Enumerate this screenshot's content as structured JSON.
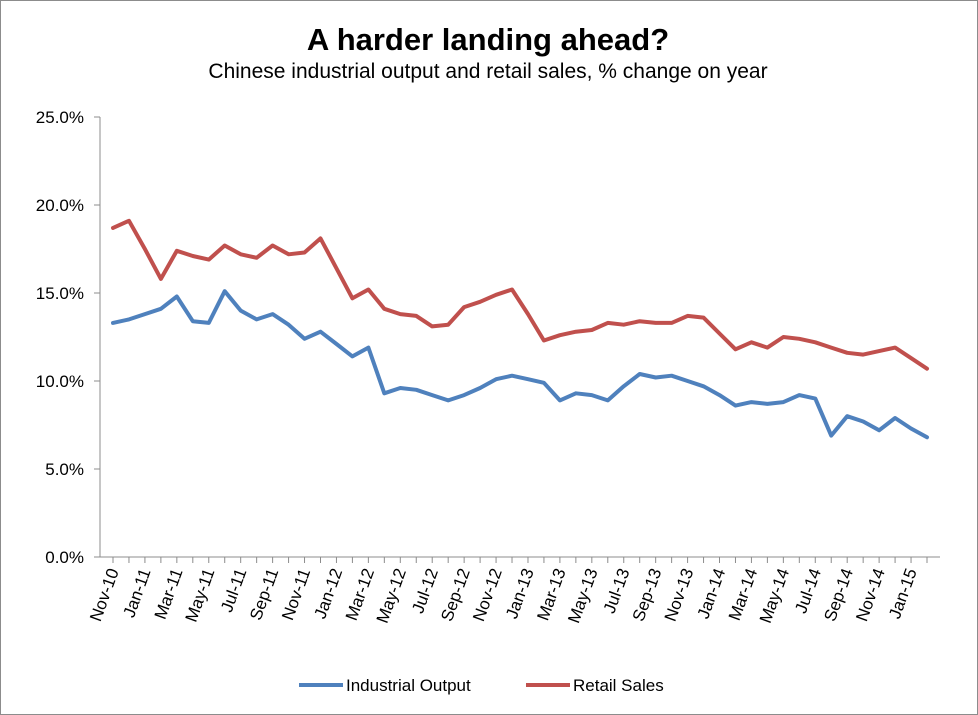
{
  "chart_data": {
    "type": "line",
    "title": "A harder landing ahead?",
    "subtitle": "Chinese industrial output and retail sales, % change on year",
    "xlabel": "",
    "ylabel": "",
    "ylim": [
      0,
      25
    ],
    "yticks": [
      "0.0%",
      "5.0%",
      "10.0%",
      "15.0%",
      "20.0%",
      "25.0%"
    ],
    "ytick_values": [
      0,
      5,
      10,
      15,
      20,
      25
    ],
    "x": [
      "Nov-10",
      "Dec-10",
      "Jan-11",
      "Feb-11",
      "Mar-11",
      "Apr-11",
      "May-11",
      "Jun-11",
      "Jul-11",
      "Aug-11",
      "Sep-11",
      "Oct-11",
      "Nov-11",
      "Dec-11",
      "Jan-12",
      "Feb-12",
      "Mar-12",
      "Apr-12",
      "May-12",
      "Jun-12",
      "Jul-12",
      "Aug-12",
      "Sep-12",
      "Oct-12",
      "Nov-12",
      "Dec-12",
      "Jan-13",
      "Feb-13",
      "Mar-13",
      "Apr-13",
      "May-13",
      "Jun-13",
      "Jul-13",
      "Aug-13",
      "Sep-13",
      "Oct-13",
      "Nov-13",
      "Dec-13",
      "Jan-14",
      "Feb-14",
      "Mar-14",
      "Apr-14",
      "May-14",
      "Jun-14",
      "Jul-14",
      "Aug-14",
      "Sep-14",
      "Oct-14",
      "Nov-14",
      "Dec-14",
      "Jan-15",
      "Feb-15"
    ],
    "xtick_labels": [
      "Nov-10",
      "Jan-11",
      "Mar-11",
      "May-11",
      "Jul-11",
      "Sep-11",
      "Nov-11",
      "Jan-12",
      "Mar-12",
      "May-12",
      "Jul-12",
      "Sep-12",
      "Nov-12",
      "Jan-13",
      "Mar-13",
      "May-13",
      "Jul-13",
      "Sep-13",
      "Nov-13",
      "Jan-14",
      "Mar-14",
      "May-14",
      "Jul-14",
      "Sep-14",
      "Nov-14",
      "Jan-15"
    ],
    "grid": false,
    "legend_position": "bottom",
    "series": [
      {
        "name": "Industrial Output",
        "color": "#4f81bd",
        "values": [
          13.3,
          13.5,
          13.8,
          14.1,
          14.8,
          13.4,
          13.3,
          15.1,
          14.0,
          13.5,
          13.8,
          13.2,
          12.4,
          12.8,
          12.1,
          11.4,
          11.9,
          9.3,
          9.6,
          9.5,
          9.2,
          8.9,
          9.2,
          9.6,
          10.1,
          10.3,
          10.1,
          9.9,
          8.9,
          9.3,
          9.2,
          8.9,
          9.7,
          10.4,
          10.2,
          10.3,
          10.0,
          9.7,
          9.2,
          8.6,
          8.8,
          8.7,
          8.8,
          9.2,
          9.0,
          6.9,
          8.0,
          7.7,
          7.2,
          7.9,
          7.3,
          6.8
        ]
      },
      {
        "name": "Retail Sales",
        "color": "#c0504d",
        "values": [
          18.7,
          19.1,
          17.5,
          15.8,
          17.4,
          17.1,
          16.9,
          17.7,
          17.2,
          17.0,
          17.7,
          17.2,
          17.3,
          18.1,
          16.4,
          14.7,
          15.2,
          14.1,
          13.8,
          13.7,
          13.1,
          13.2,
          14.2,
          14.5,
          14.9,
          15.2,
          13.8,
          12.3,
          12.6,
          12.8,
          12.9,
          13.3,
          13.2,
          13.4,
          13.3,
          13.3,
          13.7,
          13.6,
          12.7,
          11.8,
          12.2,
          11.9,
          12.5,
          12.4,
          12.2,
          11.9,
          11.6,
          11.5,
          11.7,
          11.9,
          11.3,
          10.7
        ]
      }
    ]
  }
}
